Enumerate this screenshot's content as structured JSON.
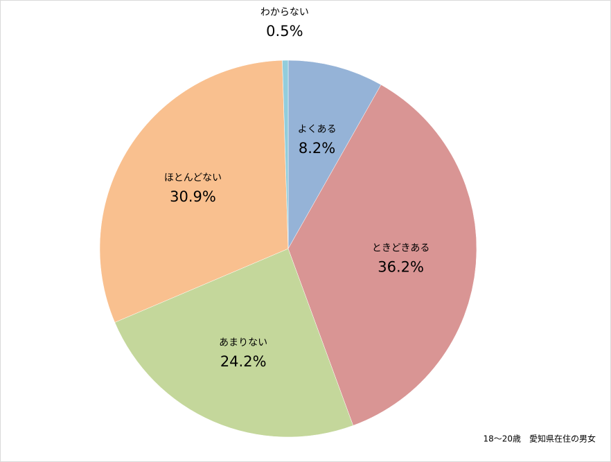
{
  "chart_data": {
    "type": "pie",
    "categories": [
      "よくある",
      "ときどきある",
      "あまりない",
      "ほとんどない",
      "わからない"
    ],
    "values": [
      8.2,
      36.2,
      24.2,
      30.9,
      0.5
    ],
    "value_labels": [
      "8.2%",
      "36.2%",
      "24.2%",
      "30.9%",
      "0.5%"
    ],
    "colors": [
      "#95b3d7",
      "#d99594",
      "#c4d79b",
      "#f9c08f",
      "#92cddc"
    ],
    "note": "18～20歳　愛知県在住の男女"
  }
}
